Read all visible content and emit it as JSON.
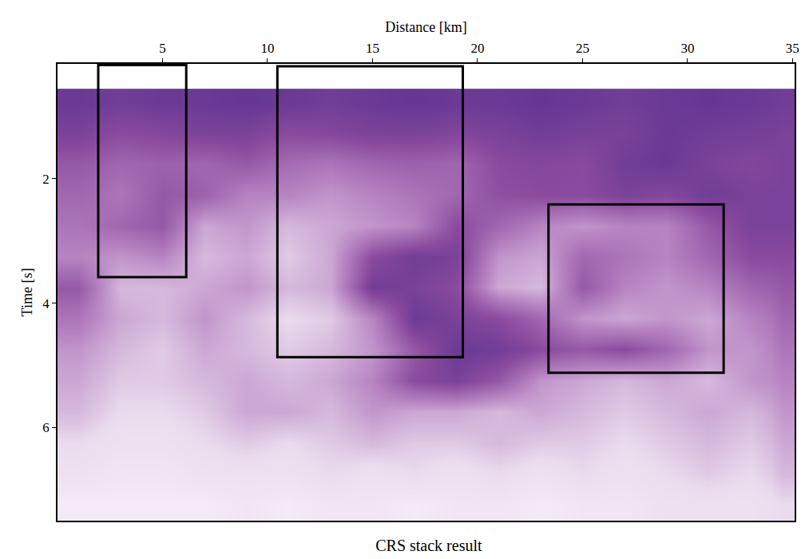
{
  "chart_data": {
    "type": "heatmap",
    "title": "CRS stack result",
    "x_label": "Distance [km]",
    "y_label": "Time [s]",
    "xlim": [
      0,
      35.1
    ],
    "xticks": [
      5,
      10,
      15,
      20,
      25,
      30,
      35
    ],
    "ylim": [
      7.5,
      0.15
    ],
    "yticks": [
      2,
      4,
      6
    ],
    "grid": false,
    "x_edges": [
      0,
      2,
      4,
      6,
      8,
      10,
      12,
      14,
      16,
      18,
      20,
      22,
      24,
      26,
      28,
      30,
      32,
      34,
      35.1
    ],
    "y_edges": [
      0.55,
      1,
      1.5,
      2,
      2.5,
      3,
      3.5,
      4,
      4.5,
      5,
      5.5,
      6,
      6.5,
      7,
      7.5
    ],
    "zlim": [
      0,
      1
    ],
    "z": [
      [
        0.9,
        0.88,
        0.9,
        0.9,
        0.92,
        0.9,
        0.88,
        0.9,
        0.92,
        0.9,
        0.9,
        0.92,
        0.9,
        0.88,
        0.9,
        0.92,
        0.9,
        0.88
      ],
      [
        0.85,
        0.8,
        0.82,
        0.85,
        0.85,
        0.8,
        0.82,
        0.85,
        0.85,
        0.83,
        0.85,
        0.88,
        0.86,
        0.85,
        0.9,
        0.88,
        0.87,
        0.85
      ],
      [
        0.75,
        0.7,
        0.72,
        0.7,
        0.75,
        0.68,
        0.65,
        0.7,
        0.72,
        0.7,
        0.8,
        0.82,
        0.8,
        0.88,
        0.9,
        0.85,
        0.82,
        0.85
      ],
      [
        0.7,
        0.65,
        0.75,
        0.72,
        0.6,
        0.6,
        0.55,
        0.6,
        0.65,
        0.7,
        0.78,
        0.8,
        0.8,
        0.85,
        0.82,
        0.88,
        0.85,
        0.85
      ],
      [
        0.65,
        0.7,
        0.75,
        0.5,
        0.55,
        0.45,
        0.5,
        0.55,
        0.6,
        0.8,
        0.7,
        0.6,
        0.55,
        0.6,
        0.6,
        0.75,
        0.85,
        0.85
      ],
      [
        0.6,
        0.55,
        0.6,
        0.45,
        0.5,
        0.4,
        0.5,
        0.8,
        0.88,
        0.85,
        0.55,
        0.5,
        0.7,
        0.65,
        0.6,
        0.7,
        0.8,
        0.8
      ],
      [
        0.75,
        0.45,
        0.45,
        0.5,
        0.55,
        0.45,
        0.5,
        0.88,
        0.85,
        0.8,
        0.5,
        0.45,
        0.75,
        0.6,
        0.55,
        0.6,
        0.7,
        0.75
      ],
      [
        0.65,
        0.5,
        0.45,
        0.55,
        0.45,
        0.35,
        0.4,
        0.6,
        0.9,
        0.85,
        0.8,
        0.7,
        0.55,
        0.5,
        0.55,
        0.5,
        0.6,
        0.7
      ],
      [
        0.55,
        0.45,
        0.4,
        0.5,
        0.45,
        0.4,
        0.45,
        0.55,
        0.75,
        0.9,
        0.88,
        0.8,
        0.75,
        0.8,
        0.7,
        0.55,
        0.55,
        0.65
      ],
      [
        0.5,
        0.4,
        0.4,
        0.45,
        0.5,
        0.45,
        0.5,
        0.6,
        0.8,
        0.85,
        0.75,
        0.55,
        0.5,
        0.45,
        0.5,
        0.45,
        0.55,
        0.6
      ],
      [
        0.45,
        0.35,
        0.35,
        0.4,
        0.5,
        0.5,
        0.45,
        0.55,
        0.5,
        0.5,
        0.45,
        0.5,
        0.45,
        0.4,
        0.45,
        0.5,
        0.45,
        0.55
      ],
      [
        0.35,
        0.3,
        0.3,
        0.35,
        0.4,
        0.35,
        0.4,
        0.45,
        0.4,
        0.4,
        0.45,
        0.4,
        0.4,
        0.35,
        0.4,
        0.45,
        0.4,
        0.5
      ],
      [
        0.3,
        0.25,
        0.25,
        0.3,
        0.3,
        0.3,
        0.35,
        0.3,
        0.35,
        0.3,
        0.35,
        0.3,
        0.35,
        0.3,
        0.35,
        0.4,
        0.35,
        0.45
      ],
      [
        0.2,
        0.2,
        0.2,
        0.2,
        0.25,
        0.2,
        0.25,
        0.25,
        0.2,
        0.25,
        0.25,
        0.2,
        0.25,
        0.25,
        0.3,
        0.3,
        0.3,
        0.35
      ]
    ],
    "boxes": [
      {
        "x": [
          1.94,
          6.13
        ],
        "y": [
          0.17,
          3.58
        ]
      },
      {
        "x": [
          10.47,
          19.3
        ],
        "y": [
          0.19,
          4.87
        ]
      },
      {
        "x": [
          23.38,
          31.72
        ],
        "y": [
          2.41,
          5.12
        ]
      }
    ]
  }
}
